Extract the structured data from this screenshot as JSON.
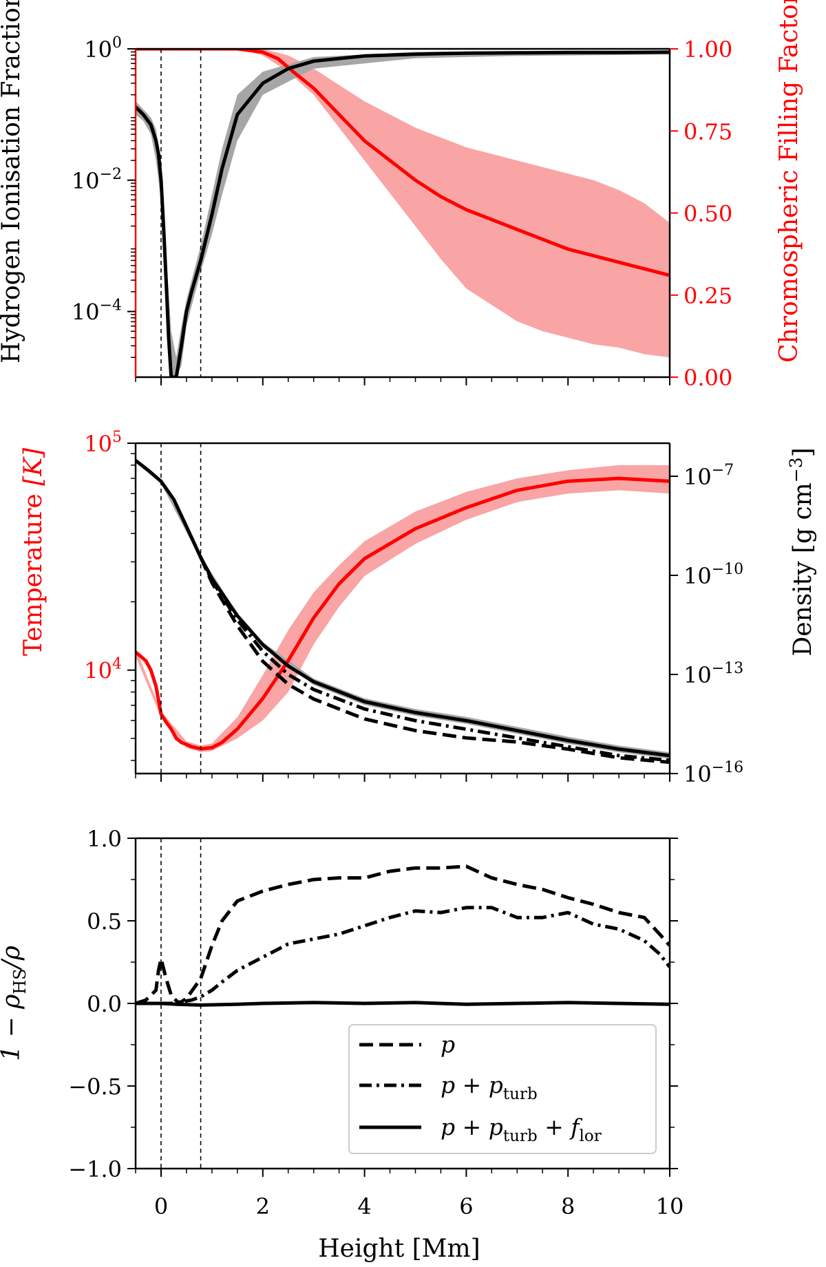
{
  "figure": {
    "xlabel": "Height [Mm]",
    "x_ticks": [
      "0",
      "2",
      "4",
      "6",
      "8",
      "10"
    ],
    "xlim": [
      -0.5,
      10
    ],
    "vlines": [
      0,
      0.78
    ]
  },
  "colors": {
    "black": "#000000",
    "red": "#ff0000",
    "red_band": "#f9a5a5",
    "grey_band": "#a6a6a6"
  },
  "legend": {
    "entries": [
      {
        "style": "dashed",
        "base": "p",
        "sub1": "",
        "plus2": "",
        "sub2": ""
      },
      {
        "style": "dashdot",
        "base": "p + p",
        "sub1": "turb",
        "plus2": "",
        "sub2": ""
      },
      {
        "style": "solid",
        "base": "p + p",
        "sub1": "turb",
        "plus2": " + f",
        "sub2": "lor"
      }
    ]
  },
  "chart_data": [
    {
      "type": "line",
      "panel": "top",
      "ylabel_left": "Hydrogen Ionisation Fraction",
      "ylabel_right": "Chromospheric Filling Factor",
      "yscale_left": "log",
      "ylim_left": [
        1e-05,
        1
      ],
      "y_ticks_left": [
        {
          "value": 1,
          "base": "10",
          "exp": "0"
        },
        {
          "value": 0.01,
          "base": "10",
          "exp": "−2"
        },
        {
          "value": 0.0001,
          "base": "10",
          "exp": "−4"
        }
      ],
      "ylim_right": [
        0,
        1
      ],
      "y_ticks_right": [
        "1.00",
        "0.75",
        "0.50",
        "0.25",
        "0.00"
      ],
      "series": [
        {
          "name": "Hydrogen ionisation fraction (median)",
          "axis": "left",
          "color": "black",
          "x": [
            -0.5,
            -0.35,
            -0.2,
            -0.1,
            -0.05,
            0,
            0.05,
            0.1,
            0.15,
            0.2,
            0.3,
            0.4,
            0.5,
            0.6,
            0.78,
            1.0,
            1.2,
            1.5,
            2.0,
            2.5,
            3,
            4,
            5,
            6,
            7,
            8,
            9,
            10
          ],
          "y": [
            0.13,
            0.1,
            0.07,
            0.04,
            0.025,
            0.01,
            0.002,
            0.0003,
            4e-05,
            1e-05,
            1e-05,
            3e-05,
            0.0001,
            0.0002,
            0.0006,
            0.003,
            0.015,
            0.1,
            0.3,
            0.5,
            0.65,
            0.78,
            0.83,
            0.86,
            0.87,
            0.88,
            0.88,
            0.89
          ]
        },
        {
          "name": "Hydrogen ionisation fraction (spread)",
          "axis": "left",
          "color": "grey_band",
          "x": [
            -0.5,
            -0.35,
            -0.2,
            -0.1,
            0,
            0.1,
            0.2,
            0.3,
            0.4,
            0.5,
            0.6,
            0.78,
            1.0,
            1.2,
            1.5,
            2.0,
            3,
            5,
            7,
            10
          ],
          "y_low": [
            0.1,
            0.08,
            0.05,
            0.02,
            0.005,
            0.0001,
            1e-05,
            1e-05,
            1.5e-05,
            6e-05,
            0.00012,
            0.0004,
            0.0015,
            0.006,
            0.04,
            0.2,
            0.5,
            0.72,
            0.78,
            0.82
          ],
          "y_high": [
            0.16,
            0.12,
            0.09,
            0.06,
            0.02,
            0.0008,
            5e-05,
            2e-05,
            6e-05,
            0.00015,
            0.0003,
            0.001,
            0.006,
            0.03,
            0.2,
            0.45,
            0.75,
            0.9,
            0.93,
            0.94
          ]
        },
        {
          "name": "Chromospheric filling factor (median)",
          "axis": "right",
          "color": "red",
          "x": [
            -0.5,
            1.5,
            2.0,
            2.3,
            2.6,
            3.0,
            3.5,
            4.0,
            4.5,
            5.0,
            5.5,
            6.0,
            6.5,
            7.0,
            7.5,
            8.0,
            8.5,
            9.0,
            9.5,
            10.0
          ],
          "y": [
            1.0,
            1.0,
            0.99,
            0.97,
            0.93,
            0.88,
            0.8,
            0.72,
            0.66,
            0.6,
            0.55,
            0.51,
            0.48,
            0.45,
            0.42,
            0.39,
            0.37,
            0.35,
            0.33,
            0.31
          ]
        },
        {
          "name": "Chromospheric filling factor (spread)",
          "axis": "right",
          "color": "red_band",
          "x": [
            -0.5,
            1.5,
            2.0,
            2.5,
            3.0,
            3.5,
            4.0,
            4.5,
            5.0,
            5.5,
            6.0,
            6.5,
            7.0,
            7.5,
            8.0,
            8.5,
            9.0,
            9.5,
            10.0
          ],
          "y_low": [
            1.0,
            1.0,
            0.98,
            0.93,
            0.86,
            0.76,
            0.66,
            0.56,
            0.46,
            0.36,
            0.27,
            0.22,
            0.17,
            0.14,
            0.12,
            0.1,
            0.09,
            0.07,
            0.06
          ],
          "y_high": [
            1.0,
            1.0,
            1.0,
            0.98,
            0.94,
            0.89,
            0.84,
            0.8,
            0.76,
            0.73,
            0.7,
            0.68,
            0.66,
            0.64,
            0.62,
            0.6,
            0.57,
            0.53,
            0.47
          ]
        }
      ]
    },
    {
      "type": "line",
      "panel": "middle",
      "ylabel_left": "Temperature [K]",
      "ylabel_left_main": "Temperature ",
      "ylabel_left_unit": "[K]",
      "ylabel_right": "Density [g cm−3]",
      "ylabel_right_main": "Density [g cm",
      "ylabel_right_exp": "−3",
      "ylabel_right_close": "]",
      "yscale_left": "log",
      "ylim_left": [
        3500,
        100000
      ],
      "y_ticks_left": [
        {
          "value": 100000,
          "base": "10",
          "exp": "5"
        },
        {
          "value": 10000,
          "base": "10",
          "exp": "4"
        }
      ],
      "yscale_right": "log",
      "ylim_right": [
        1e-16,
        1e-06
      ],
      "y_ticks_right": [
        {
          "value": 1e-07,
          "base": "10",
          "exp": "−7"
        },
        {
          "value": 1e-10,
          "base": "10",
          "exp": "−10"
        },
        {
          "value": 1e-13,
          "base": "10",
          "exp": "−13"
        },
        {
          "value": 1e-16,
          "base": "10",
          "exp": "−16"
        }
      ],
      "series": [
        {
          "name": "Temperature (median)",
          "axis": "left",
          "color": "red",
          "x": [
            -0.5,
            -0.4,
            -0.3,
            -0.2,
            -0.1,
            0,
            0.1,
            0.2,
            0.3,
            0.4,
            0.5,
            0.6,
            0.78,
            1.0,
            1.2,
            1.5,
            2.0,
            2.5,
            3.0,
            3.5,
            4.0,
            5.0,
            6.0,
            7.0,
            8.0,
            9.0,
            10.0
          ],
          "y": [
            12000,
            11500,
            11000,
            10000,
            8500,
            6400,
            5900,
            5500,
            5000,
            4800,
            4700,
            4600,
            4500,
            4550,
            4800,
            5500,
            7500,
            11000,
            17000,
            24000,
            31000,
            42000,
            52000,
            62000,
            68000,
            70000,
            68000
          ]
        },
        {
          "name": "Temperature (spread)",
          "axis": "left",
          "color": "red_band",
          "x": [
            -0.5,
            0,
            0.5,
            0.78,
            1.0,
            1.5,
            2.0,
            2.5,
            3.0,
            3.5,
            4.0,
            5.0,
            6.0,
            7.0,
            8.0,
            9.0,
            10.0
          ],
          "y_low": [
            11500,
            6200,
            4550,
            4350,
            4400,
            5000,
            6000,
            8000,
            13000,
            19000,
            26000,
            36000,
            46000,
            55000,
            60000,
            62000,
            60000
          ],
          "y_high": [
            12500,
            6600,
            4850,
            4650,
            4750,
            6200,
            9500,
            15000,
            22000,
            29000,
            37000,
            50000,
            61000,
            70000,
            76000,
            80000,
            80000
          ]
        },
        {
          "name": "Density (p + p_turb + f_lor)",
          "axis": "right",
          "color": "black",
          "style": "solid",
          "x": [
            -0.5,
            -0.25,
            0,
            0.25,
            0.5,
            0.78,
            1.0,
            1.5,
            2.0,
            2.5,
            3.0,
            4.0,
            5.0,
            6.0,
            7.0,
            8.0,
            9.0,
            10.0
          ],
          "y": [
            3e-07,
            1.5e-07,
            7e-08,
            2e-08,
            3e-09,
            3.5e-10,
            8e-11,
            6e-12,
            8e-13,
            1.8e-13,
            6e-14,
            1.5e-14,
            7e-15,
            4e-15,
            2e-15,
            1e-15,
            5.5e-16,
            3.5e-16
          ]
        },
        {
          "name": "Density spread",
          "axis": "right",
          "color": "grey_band",
          "x": [
            -0.5,
            0,
            0.78,
            1.5,
            2.0,
            3.0,
            4.0,
            5.0,
            6.0,
            7.0,
            8.0,
            9.0,
            10.0
          ],
          "y_low": [
            2.6e-07,
            6e-08,
            3e-10,
            5e-12,
            6.5e-13,
            4.8e-14,
            1.2e-14,
            5.6e-15,
            3.2e-15,
            1.6e-15,
            8e-16,
            4.4e-16,
            2.8e-16
          ],
          "y_high": [
            3.4e-07,
            8e-08,
            4e-10,
            7e-12,
            9.5e-13,
            7.5e-14,
            1.9e-14,
            9e-15,
            5.2e-15,
            2.6e-15,
            1.3e-15,
            7e-16,
            4.4e-16
          ]
        },
        {
          "name": "Density (p + p_turb)",
          "axis": "right",
          "color": "black",
          "style": "dashdot",
          "x": [
            0.78,
            1.0,
            1.5,
            2.0,
            2.5,
            3.0,
            4.0,
            5.0,
            6.0,
            7.0,
            8.0,
            9.0,
            10.0
          ],
          "y": [
            3.5e-10,
            7e-11,
            4.5e-12,
            5e-13,
            1e-13,
            3.5e-14,
            9e-15,
            4e-15,
            2.2e-15,
            1.2e-15,
            6.5e-16,
            3.5e-16,
            2.5e-16
          ]
        },
        {
          "name": "Density (p)",
          "axis": "right",
          "color": "black",
          "style": "dashed",
          "x": [
            0.78,
            1.0,
            1.5,
            2.0,
            2.5,
            3.0,
            4.0,
            5.0,
            6.0,
            7.0,
            8.0,
            9.0,
            10.0
          ],
          "y": [
            3.5e-10,
            6e-11,
            3e-12,
            2.5e-13,
            5e-14,
            1.8e-14,
            4.5e-15,
            2e-15,
            1.2e-15,
            9e-16,
            5.5e-16,
            3e-16,
            2.2e-16
          ]
        }
      ]
    },
    {
      "type": "line",
      "panel": "bottom",
      "ylabel": "1 − ρHS/ρ",
      "ylabel_main": "1 − ρ",
      "ylabel_sub": "HS",
      "ylabel_tail": "/ρ",
      "ylim": [
        -1,
        1
      ],
      "y_ticks": [
        "1.0",
        "0.5",
        "0.0",
        "−0.5",
        "−1.0"
      ],
      "y_tick_values": [
        1,
        0.5,
        0,
        -0.5,
        -1
      ],
      "series": [
        {
          "name": "p",
          "style": "dashed",
          "x": [
            -0.5,
            -0.3,
            -0.1,
            -0.05,
            0,
            0.1,
            0.2,
            0.35,
            0.5,
            0.78,
            1.0,
            1.2,
            1.5,
            2.0,
            2.5,
            3.0,
            3.5,
            4.0,
            4.5,
            5.0,
            5.5,
            6.0,
            6.5,
            7.0,
            7.5,
            8.0,
            8.5,
            9.0,
            9.5,
            9.8,
            10.0
          ],
          "y": [
            0.0,
            0.02,
            0.08,
            0.2,
            0.27,
            0.15,
            0.05,
            0.0,
            0.03,
            0.15,
            0.35,
            0.5,
            0.62,
            0.68,
            0.72,
            0.75,
            0.76,
            0.76,
            0.8,
            0.82,
            0.82,
            0.83,
            0.76,
            0.72,
            0.69,
            0.64,
            0.6,
            0.55,
            0.52,
            0.42,
            0.35
          ]
        },
        {
          "name": "p + p_turb",
          "style": "dashdot",
          "x": [
            -0.5,
            -0.3,
            -0.1,
            0,
            0.2,
            0.4,
            0.6,
            0.78,
            1.0,
            1.2,
            1.5,
            2.0,
            2.5,
            3.0,
            3.5,
            4.0,
            4.5,
            5.0,
            5.5,
            6.0,
            6.5,
            7.0,
            7.5,
            8.0,
            8.5,
            9.0,
            9.5,
            9.8,
            10.0
          ],
          "y": [
            0.0,
            0.0,
            0.0,
            0.0,
            0.0,
            0.01,
            0.02,
            0.04,
            0.08,
            0.13,
            0.2,
            0.28,
            0.36,
            0.39,
            0.42,
            0.47,
            0.52,
            0.56,
            0.55,
            0.58,
            0.58,
            0.52,
            0.52,
            0.55,
            0.48,
            0.45,
            0.38,
            0.3,
            0.22
          ]
        },
        {
          "name": "p + p_turb + f_lor",
          "style": "solid",
          "x": [
            -0.5,
            -0.2,
            0,
            0.3,
            0.78,
            1.5,
            2.0,
            3.0,
            4.0,
            5.0,
            6.0,
            7.0,
            8.0,
            9.0,
            10.0
          ],
          "y": [
            0.0,
            0.0,
            0.0,
            -0.005,
            -0.01,
            -0.005,
            0.0,
            0.005,
            0.0,
            0.005,
            -0.005,
            0.0,
            0.005,
            0.0,
            -0.005
          ]
        }
      ]
    }
  ]
}
